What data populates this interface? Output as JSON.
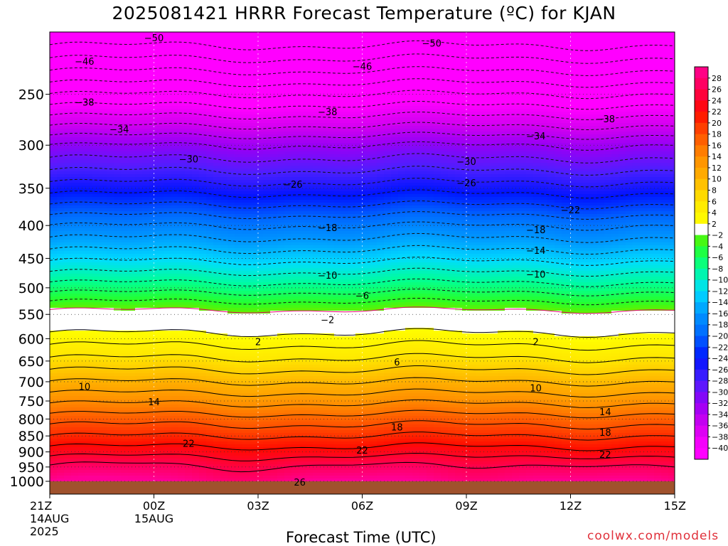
{
  "title": "2025081421 HRRR Forecast Temperature (ºC) for KJAN",
  "credit": "coolwx.com/models",
  "chart_data": {
    "type": "heatmap",
    "title": "2025081421 HRRR Forecast Temperature (ºC) for KJAN",
    "xlabel": "Forecast Time (UTC)",
    "ylabel": "",
    "x_ticks": [
      {
        "hour": 0,
        "lines": [
          "21Z",
          "14AUG",
          "2025"
        ]
      },
      {
        "hour": 3,
        "lines": [
          "00Z",
          "15AUG"
        ]
      },
      {
        "hour": 6,
        "lines": [
          "03Z"
        ]
      },
      {
        "hour": 9,
        "lines": [
          "06Z"
        ]
      },
      {
        "hour": 12,
        "lines": [
          "09Z"
        ]
      },
      {
        "hour": 15,
        "lines": [
          "12Z"
        ]
      },
      {
        "hour": 18,
        "lines": [
          "15Z"
        ]
      }
    ],
    "xlim": [
      0,
      18
    ],
    "y_scale": "log-pressure (hPa), top=200, surface=1000",
    "ylim": [
      1000,
      200
    ],
    "y_ticks": [
      250,
      300,
      350,
      400,
      450,
      500,
      550,
      600,
      650,
      700,
      750,
      800,
      850,
      900,
      950,
      1000
    ],
    "grid": true,
    "colorbar": {
      "position": "right",
      "levels": [
        28,
        26,
        24,
        22,
        20,
        18,
        16,
        14,
        12,
        10,
        8,
        6,
        4,
        2,
        -2,
        -4,
        -6,
        -8,
        -10,
        -12,
        -14,
        -16,
        -18,
        -20,
        -22,
        -24,
        -26,
        -28,
        -30,
        -32,
        -34,
        -36,
        -38,
        -40
      ]
    },
    "temperature_profile": {
      "hours": [
        0,
        1,
        2,
        3,
        4,
        5,
        6,
        7,
        8,
        9,
        10,
        11,
        12,
        13,
        14,
        15,
        16,
        17,
        18
      ],
      "pressures": [
        200,
        300,
        400,
        500,
        550,
        600,
        700,
        800,
        850,
        900,
        950,
        1000
      ],
      "anchor_temps": [
        -52,
        -32,
        -18,
        -7,
        -1,
        3,
        10,
        17,
        20,
        23,
        26,
        29
      ]
    },
    "contours": [
      {
        "value": -50,
        "label_positions": [
          {
            "hour": 3,
            "p": 204
          },
          {
            "hour": 11,
            "p": 208
          }
        ]
      },
      {
        "value": -46,
        "label_positions": [
          {
            "hour": 1,
            "p": 222
          },
          {
            "hour": 9,
            "p": 226
          }
        ]
      },
      {
        "value": -38,
        "label_positions": [
          {
            "hour": 1,
            "p": 257
          },
          {
            "hour": 8,
            "p": 266
          },
          {
            "hour": 16,
            "p": 273
          }
        ]
      },
      {
        "value": -34,
        "label_positions": [
          {
            "hour": 2,
            "p": 283
          },
          {
            "hour": 14,
            "p": 290
          }
        ]
      },
      {
        "value": -30,
        "label_positions": [
          {
            "hour": 4,
            "p": 315
          },
          {
            "hour": 12,
            "p": 318
          }
        ]
      },
      {
        "value": -26,
        "label_positions": [
          {
            "hour": 7,
            "p": 345
          },
          {
            "hour": 12,
            "p": 343
          }
        ]
      },
      {
        "value": -22,
        "label_positions": [
          {
            "hour": 15,
            "p": 378
          }
        ]
      },
      {
        "value": -18,
        "label_positions": [
          {
            "hour": 8,
            "p": 403
          },
          {
            "hour": 14,
            "p": 406
          }
        ]
      },
      {
        "value": -14,
        "label_positions": [
          {
            "hour": 14,
            "p": 437
          }
        ]
      },
      {
        "value": -10,
        "label_positions": [
          {
            "hour": 8,
            "p": 478
          },
          {
            "hour": 14,
            "p": 476
          }
        ]
      },
      {
        "value": -6,
        "label_positions": [
          {
            "hour": 9,
            "p": 514
          }
        ]
      },
      {
        "value": -2,
        "label_positions": [
          {
            "hour": 8,
            "p": 560
          }
        ]
      },
      {
        "value": 2,
        "label_positions": [
          {
            "hour": 6,
            "p": 606
          },
          {
            "hour": 14,
            "p": 606
          }
        ]
      },
      {
        "value": 6,
        "label_positions": [
          {
            "hour": 10,
            "p": 652
          }
        ]
      },
      {
        "value": 10,
        "label_positions": [
          {
            "hour": 1,
            "p": 712
          },
          {
            "hour": 14,
            "p": 715
          }
        ]
      },
      {
        "value": 14,
        "label_positions": [
          {
            "hour": 3,
            "p": 752
          },
          {
            "hour": 16,
            "p": 779
          }
        ]
      },
      {
        "value": 18,
        "label_positions": [
          {
            "hour": 10,
            "p": 823
          },
          {
            "hour": 16,
            "p": 839
          }
        ]
      },
      {
        "value": 22,
        "label_positions": [
          {
            "hour": 4,
            "p": 873
          },
          {
            "hour": 9,
            "p": 894
          },
          {
            "hour": 16,
            "p": 908
          }
        ]
      },
      {
        "value": 26,
        "label_positions": [
          {
            "hour": 7.2,
            "p": 1003
          }
        ]
      }
    ]
  }
}
